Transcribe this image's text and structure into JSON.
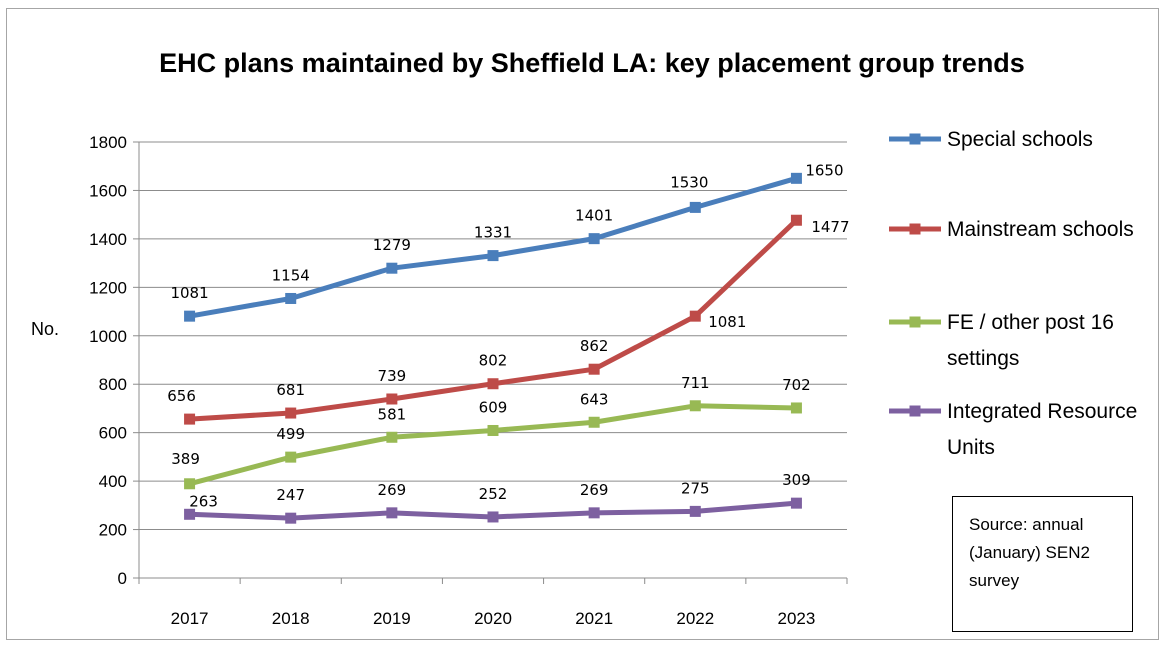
{
  "chart_data": {
    "type": "line",
    "title": "EHC plans maintained by Sheffield LA: key placement group trends",
    "ylabel": "No.",
    "xlabel": "",
    "ylim": [
      0,
      1800
    ],
    "yticks": [
      0,
      200,
      400,
      600,
      800,
      1000,
      1200,
      1400,
      1600,
      1800
    ],
    "categories": [
      "2017",
      "2018",
      "2019",
      "2020",
      "2021",
      "2022",
      "2023"
    ],
    "grid": true,
    "legend": "right",
    "series": [
      {
        "name": "Special schools",
        "color": "#4a7ebb",
        "values": [
          1081,
          1154,
          1279,
          1331,
          1401,
          1530,
          1650
        ]
      },
      {
        "name": "Mainstream schools",
        "color": "#be4b48",
        "values": [
          656,
          681,
          739,
          802,
          862,
          1081,
          1477
        ]
      },
      {
        "name": "FE / other post 16 settings",
        "color": "#98b954",
        "values": [
          389,
          499,
          581,
          609,
          643,
          711,
          702
        ]
      },
      {
        "name": "Integrated Resource Units",
        "color": "#7d60a0",
        "values": [
          263,
          247,
          269,
          252,
          269,
          275,
          309
        ]
      }
    ],
    "legend_lines": [
      [
        "Special schools"
      ],
      [
        "Mainstream schools"
      ],
      [
        "FE / other post 16",
        "settings"
      ],
      [
        "Integrated Resource",
        "Units"
      ]
    ]
  },
  "source_note": [
    "Source: annual",
    "(January) SEN2",
    "survey"
  ]
}
